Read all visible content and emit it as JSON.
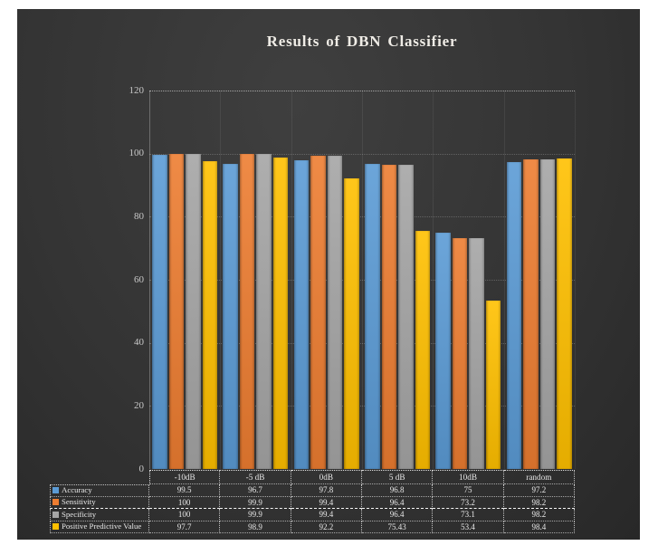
{
  "page": {
    "margin_color": "#ffffff"
  },
  "slide": {
    "background": "#343434"
  },
  "chart_data": {
    "type": "bar",
    "title": "Results of DBN Classifier",
    "categories": [
      "-10dB",
      "-5 dB",
      "0dB",
      "5 dB",
      "10dB",
      "random"
    ],
    "series": [
      {
        "name": "Accuracy",
        "color": "#5B9BD5",
        "values": [
          99.5,
          96.7,
          97.8,
          96.8,
          75,
          97.2
        ]
      },
      {
        "name": "Sensitivity",
        "color": "#ED7D31",
        "values": [
          100,
          99.9,
          99.4,
          96.4,
          73.2,
          98.2
        ]
      },
      {
        "name": "Specificity",
        "color": "#A5A5A5",
        "values": [
          100,
          99.9,
          99.4,
          96.4,
          73.1,
          98.2
        ]
      },
      {
        "name": "Positive Predictive Value",
        "color": "#FFC000",
        "values": [
          97.7,
          98.9,
          92.2,
          75.43,
          53.4,
          98.4
        ]
      }
    ],
    "ylim": [
      0,
      120
    ],
    "yticks": [
      0,
      20,
      40,
      60,
      80,
      100,
      120
    ],
    "grid": true,
    "gridline_color": "#9a9a9a",
    "axis_label_color": "#c9c9c9",
    "title_color": "#efece6",
    "legend_position": "data-table-left-swatches"
  }
}
